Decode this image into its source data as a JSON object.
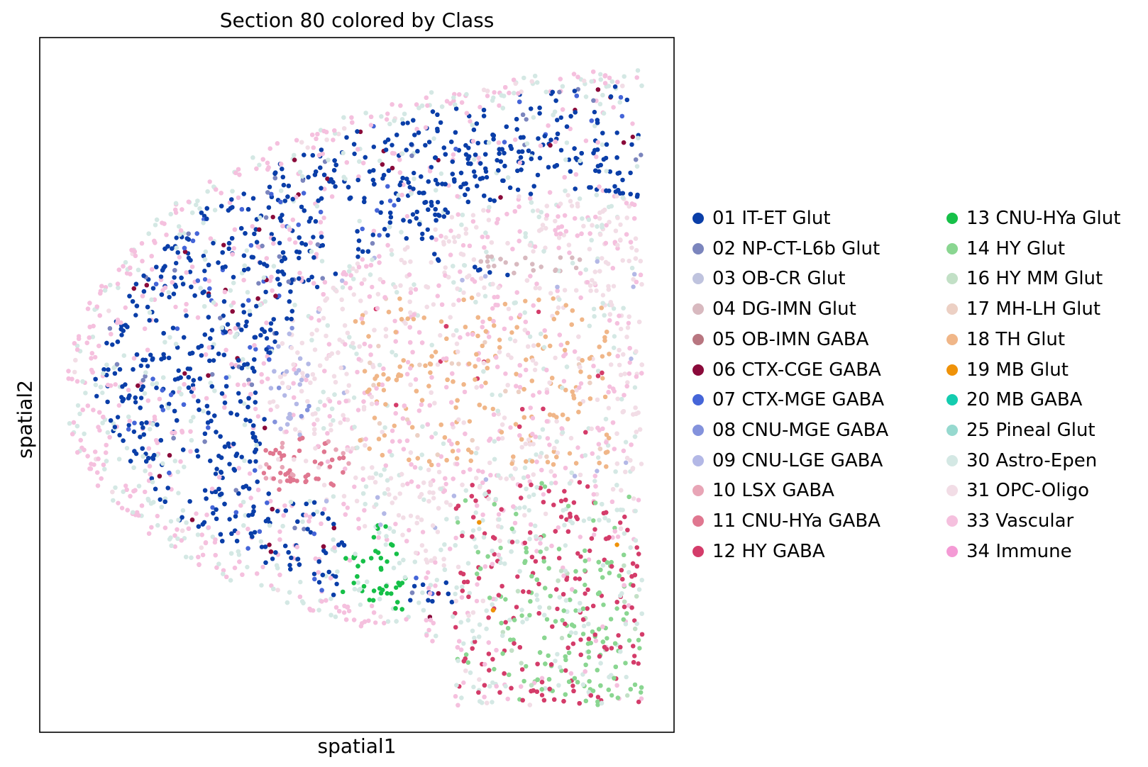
{
  "chart_data": {
    "type": "scatter",
    "title": "Section 80 colored by Class",
    "xlabel": "spatial1",
    "ylabel": "spatial2",
    "x_ticks": [],
    "y_ticks": [],
    "grid": false,
    "legend_position": "right",
    "legend_columns": 2,
    "series": [
      {
        "name": "01 IT-ET Glut",
        "color": "#0a3ea8"
      },
      {
        "name": "02 NP-CT-L6b Glut",
        "color": "#7b85bd"
      },
      {
        "name": "03 OB-CR Glut",
        "color": "#bfc3de"
      },
      {
        "name": "04 DG-IMN Glut",
        "color": "#d8b9bf"
      },
      {
        "name": "05 OB-IMN GABA",
        "color": "#b87680"
      },
      {
        "name": "06 CTX-CGE GABA",
        "color": "#8a0a3a"
      },
      {
        "name": "07 CTX-MGE GABA",
        "color": "#4565d8"
      },
      {
        "name": "08 CNU-MGE GABA",
        "color": "#8392dc"
      },
      {
        "name": "09 CNU-LGE GABA",
        "color": "#b3b8e6"
      },
      {
        "name": "10 LSX GABA",
        "color": "#e8a5b6"
      },
      {
        "name": "11 CNU-HYa GABA",
        "color": "#e07790"
      },
      {
        "name": "12 HY GABA",
        "color": "#d43c6a"
      },
      {
        "name": "13 CNU-HYa Glut",
        "color": "#16c048"
      },
      {
        "name": "14 HY Glut",
        "color": "#8ad691"
      },
      {
        "name": "16 HY MM Glut",
        "color": "#c2e0c6"
      },
      {
        "name": "17 MH-LH Glut",
        "color": "#ecd0c4"
      },
      {
        "name": "18 TH Glut",
        "color": "#f0b688"
      },
      {
        "name": "19 MB Glut",
        "color": "#ef9208"
      },
      {
        "name": "20 MB GABA",
        "color": "#14ccaf"
      },
      {
        "name": "25 Pineal Glut",
        "color": "#96d9cf"
      },
      {
        "name": "30 Astro-Epen",
        "color": "#d4e8e4"
      },
      {
        "name": "31 OPC-Oligo",
        "color": "#f2dde6"
      },
      {
        "name": "33 Vascular",
        "color": "#f5c0de"
      },
      {
        "name": "34 Immune",
        "color": "#f49ad5"
      }
    ]
  }
}
